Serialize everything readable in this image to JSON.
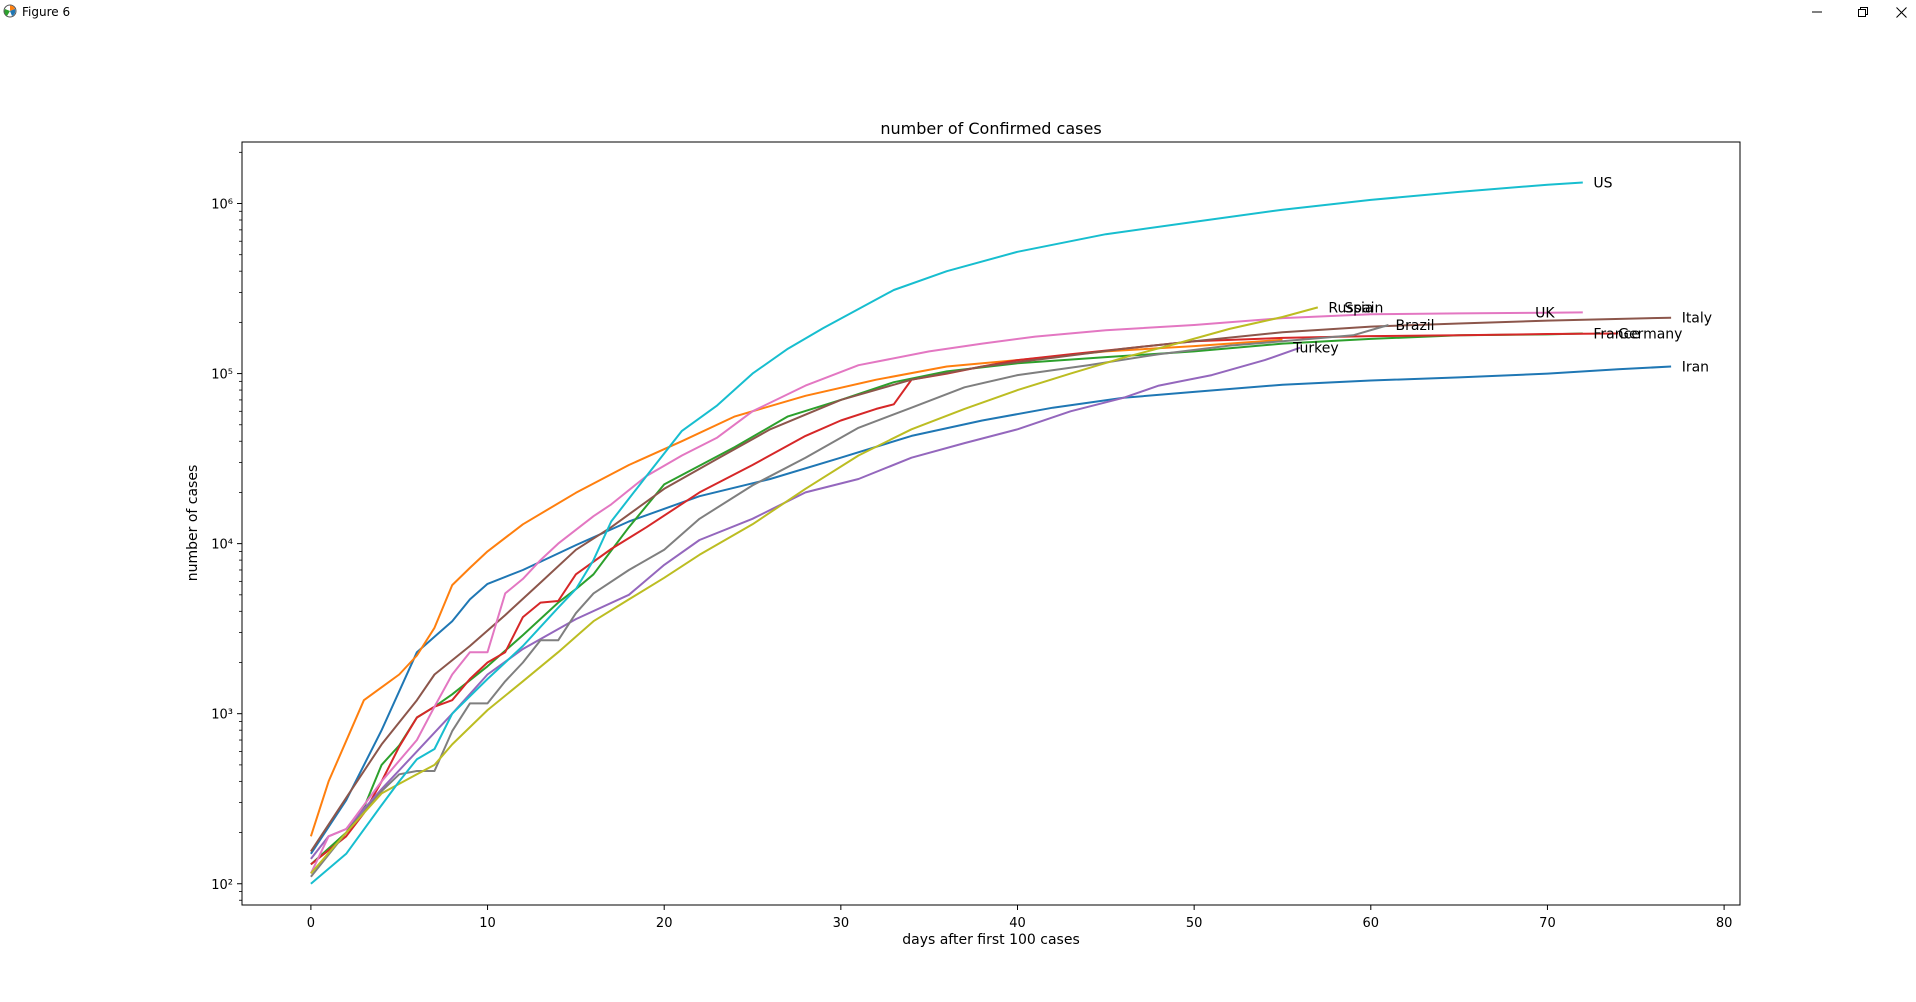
{
  "window": {
    "title": "Figure 6"
  },
  "chart_data": {
    "type": "line",
    "title": "number of Confirmed cases",
    "xlabel": "days after first 100 cases",
    "ylabel": "number of cases",
    "yscale": "log",
    "xlim": [
      -3.9,
      80.9
    ],
    "ylim": [
      75,
      2300000
    ],
    "xticks": [
      0,
      10,
      20,
      30,
      40,
      50,
      60,
      70,
      80
    ],
    "yticks": [
      {
        "value": 100,
        "label": "10²"
      },
      {
        "value": 1000,
        "label": "10³"
      },
      {
        "value": 10000,
        "label": "10⁴"
      },
      {
        "value": 100000,
        "label": "10⁵"
      },
      {
        "value": 1000000,
        "label": "10⁶"
      }
    ],
    "grid": false,
    "legend": "none",
    "series": [
      {
        "name": "Iran",
        "color": "#1f77b4",
        "points": [
          [
            0,
            150
          ],
          [
            2,
            310
          ],
          [
            4,
            800
          ],
          [
            6,
            2300
          ],
          [
            8,
            3500
          ],
          [
            9,
            4700
          ],
          [
            10,
            5800
          ],
          [
            12,
            7000
          ],
          [
            15,
            9800
          ],
          [
            18,
            13500
          ],
          [
            22,
            19000
          ],
          [
            26,
            24000
          ],
          [
            30,
            32000
          ],
          [
            34,
            43000
          ],
          [
            38,
            53000
          ],
          [
            42,
            63000
          ],
          [
            46,
            72000
          ],
          [
            50,
            78000
          ],
          [
            55,
            86000
          ],
          [
            60,
            91000
          ],
          [
            65,
            95000
          ],
          [
            70,
            100000
          ],
          [
            74,
            106000
          ],
          [
            77,
            110000
          ]
        ]
      },
      {
        "name": "Spain",
        "color": "#ff7f0e",
        "points": [
          [
            0,
            190
          ],
          [
            1,
            400
          ],
          [
            3,
            1200
          ],
          [
            5,
            1700
          ],
          [
            6,
            2200
          ],
          [
            7,
            3200
          ],
          [
            8,
            5700
          ],
          [
            9,
            7200
          ],
          [
            10,
            9000
          ],
          [
            12,
            13000
          ],
          [
            15,
            19900
          ],
          [
            18,
            29000
          ],
          [
            21,
            40000
          ],
          [
            24,
            56000
          ],
          [
            28,
            74000
          ],
          [
            32,
            92000
          ],
          [
            36,
            110000
          ],
          [
            40,
            120000
          ],
          [
            45,
            135000
          ],
          [
            50,
            145000
          ],
          [
            55,
            158000
          ]
        ]
      },
      {
        "name": "France",
        "color": "#2ca02c",
        "points": [
          [
            0,
            130
          ],
          [
            2,
            200
          ],
          [
            3,
            280
          ],
          [
            4,
            500
          ],
          [
            5,
            650
          ],
          [
            6,
            950
          ],
          [
            7,
            1100
          ],
          [
            8,
            1300
          ],
          [
            10,
            1900
          ],
          [
            12,
            2900
          ],
          [
            14,
            4500
          ],
          [
            15,
            5400
          ],
          [
            16,
            6600
          ],
          [
            17,
            9100
          ],
          [
            18,
            12500
          ],
          [
            20,
            22300
          ],
          [
            24,
            37000
          ],
          [
            27,
            56000
          ],
          [
            30,
            70000
          ],
          [
            33,
            89000
          ],
          [
            36,
            103000
          ],
          [
            40,
            115000
          ],
          [
            45,
            125000
          ],
          [
            50,
            135000
          ],
          [
            55,
            150000
          ],
          [
            60,
            160000
          ],
          [
            65,
            168000
          ],
          [
            70,
            170000
          ],
          [
            72,
            172000
          ]
        ]
      },
      {
        "name": "Germany",
        "color": "#d62728",
        "points": [
          [
            0,
            130
          ],
          [
            2,
            190
          ],
          [
            3,
            260
          ],
          [
            4,
            400
          ],
          [
            5,
            640
          ],
          [
            6,
            950
          ],
          [
            7,
            1100
          ],
          [
            8,
            1200
          ],
          [
            9,
            1600
          ],
          [
            10,
            2000
          ],
          [
            11,
            2300
          ],
          [
            12,
            3700
          ],
          [
            13,
            4500
          ],
          [
            14,
            4600
          ],
          [
            15,
            6600
          ],
          [
            17,
            9300
          ],
          [
            19,
            12500
          ],
          [
            22,
            20000
          ],
          [
            25,
            29000
          ],
          [
            28,
            43000
          ],
          [
            30,
            53000
          ],
          [
            32,
            62000
          ],
          [
            33,
            66000
          ],
          [
            34,
            92000
          ],
          [
            36,
            100000
          ],
          [
            38,
            110000
          ],
          [
            40,
            120000
          ],
          [
            43,
            130000
          ],
          [
            46,
            140000
          ],
          [
            50,
            155000
          ],
          [
            55,
            162000
          ],
          [
            60,
            166000
          ],
          [
            65,
            168000
          ],
          [
            70,
            171000
          ],
          [
            74,
            172000
          ]
        ]
      },
      {
        "name": "Turkey",
        "color": "#9467bd",
        "points": [
          [
            0,
            140
          ],
          [
            1,
            190
          ],
          [
            2,
            210
          ],
          [
            4,
            360
          ],
          [
            6,
            600
          ],
          [
            8,
            1000
          ],
          [
            10,
            1700
          ],
          [
            12,
            2400
          ],
          [
            15,
            3600
          ],
          [
            18,
            5000
          ],
          [
            20,
            7500
          ],
          [
            22,
            10500
          ],
          [
            25,
            14000
          ],
          [
            28,
            20000
          ],
          [
            31,
            24000
          ],
          [
            34,
            32000
          ],
          [
            37,
            39000
          ],
          [
            40,
            47000
          ],
          [
            43,
            60000
          ],
          [
            46,
            72000
          ],
          [
            48,
            85000
          ],
          [
            51,
            98000
          ],
          [
            54,
            120000
          ],
          [
            56,
            142000
          ]
        ]
      },
      {
        "name": "Italy",
        "color": "#8c564b",
        "points": [
          [
            0,
            155
          ],
          [
            2,
            320
          ],
          [
            4,
            660
          ],
          [
            6,
            1200
          ],
          [
            7,
            1700
          ],
          [
            9,
            2500
          ],
          [
            11,
            3800
          ],
          [
            13,
            5900
          ],
          [
            15,
            9200
          ],
          [
            17,
            12500
          ],
          [
            20,
            21000
          ],
          [
            23,
            31500
          ],
          [
            26,
            47000
          ],
          [
            30,
            70000
          ],
          [
            34,
            92000
          ],
          [
            38,
            110000
          ],
          [
            42,
            124000
          ],
          [
            46,
            140000
          ],
          [
            50,
            155000
          ],
          [
            55,
            175000
          ],
          [
            60,
            189000
          ],
          [
            65,
            197000
          ],
          [
            70,
            205000
          ],
          [
            77,
            213000
          ]
        ]
      },
      {
        "name": "UK",
        "color": "#e377c2",
        "points": [
          [
            0,
            115
          ],
          [
            1,
            190
          ],
          [
            2,
            210
          ],
          [
            4,
            400
          ],
          [
            6,
            700
          ],
          [
            7,
            1100
          ],
          [
            8,
            1700
          ],
          [
            9,
            2300
          ],
          [
            10,
            2300
          ],
          [
            11,
            5100
          ],
          [
            12,
            6200
          ],
          [
            13,
            8000
          ],
          [
            14,
            10000
          ],
          [
            16,
            14500
          ],
          [
            17,
            17000
          ],
          [
            19,
            25000
          ],
          [
            21,
            33000
          ],
          [
            23,
            42000
          ],
          [
            25,
            60000
          ],
          [
            28,
            85000
          ],
          [
            31,
            112000
          ],
          [
            35,
            135000
          ],
          [
            38,
            150000
          ],
          [
            41,
            165000
          ],
          [
            45,
            180000
          ],
          [
            50,
            193000
          ],
          [
            55,
            212000
          ],
          [
            60,
            223000
          ],
          [
            65,
            226000
          ],
          [
            70,
            228000
          ],
          [
            72,
            229000
          ]
        ]
      },
      {
        "name": "Brazil",
        "color": "#7f7f7f",
        "points": [
          [
            0,
            110
          ],
          [
            2,
            200
          ],
          [
            4,
            350
          ],
          [
            5,
            440
          ],
          [
            6,
            460
          ],
          [
            7,
            460
          ],
          [
            8,
            790
          ],
          [
            9,
            1150
          ],
          [
            10,
            1150
          ],
          [
            11,
            1550
          ],
          [
            12,
            2000
          ],
          [
            13,
            2700
          ],
          [
            14,
            2700
          ],
          [
            15,
            3900
          ],
          [
            16,
            5100
          ],
          [
            18,
            7000
          ],
          [
            20,
            9200
          ],
          [
            22,
            14000
          ],
          [
            25,
            22000
          ],
          [
            28,
            32000
          ],
          [
            31,
            48000
          ],
          [
            34,
            63000
          ],
          [
            37,
            83000
          ],
          [
            40,
            98000
          ],
          [
            44,
            112000
          ],
          [
            48,
            130000
          ],
          [
            52,
            146000
          ],
          [
            56,
            158000
          ],
          [
            59,
            168000
          ],
          [
            61,
            193000
          ]
        ]
      },
      {
        "name": "Russia",
        "color": "#bcbd22",
        "points": [
          [
            0,
            115
          ],
          [
            2,
            200
          ],
          [
            4,
            340
          ],
          [
            6,
            440
          ],
          [
            7,
            500
          ],
          [
            8,
            660
          ],
          [
            10,
            1050
          ],
          [
            12,
            1550
          ],
          [
            14,
            2300
          ],
          [
            16,
            3500
          ],
          [
            18,
            4700
          ],
          [
            20,
            6300
          ],
          [
            22,
            8600
          ],
          [
            25,
            13000
          ],
          [
            28,
            21000
          ],
          [
            31,
            33000
          ],
          [
            34,
            47000
          ],
          [
            37,
            62000
          ],
          [
            40,
            80000
          ],
          [
            43,
            100000
          ],
          [
            46,
            124000
          ],
          [
            49,
            150000
          ],
          [
            52,
            183000
          ],
          [
            55,
            215000
          ],
          [
            57,
            245000
          ]
        ]
      },
      {
        "name": "US",
        "color": "#17becf",
        "points": [
          [
            0,
            100
          ],
          [
            2,
            150
          ],
          [
            4,
            290
          ],
          [
            5,
            400
          ],
          [
            6,
            540
          ],
          [
            7,
            620
          ],
          [
            8,
            1000
          ],
          [
            10,
            1600
          ],
          [
            12,
            2500
          ],
          [
            14,
            4200
          ],
          [
            15,
            5400
          ],
          [
            16,
            8000
          ],
          [
            17,
            13500
          ],
          [
            19,
            25000
          ],
          [
            21,
            46000
          ],
          [
            23,
            65000
          ],
          [
            25,
            100000
          ],
          [
            27,
            140000
          ],
          [
            29,
            185000
          ],
          [
            33,
            310000
          ],
          [
            36,
            400000
          ],
          [
            40,
            520000
          ],
          [
            45,
            660000
          ],
          [
            50,
            780000
          ],
          [
            55,
            920000
          ],
          [
            60,
            1050000
          ],
          [
            65,
            1170000
          ],
          [
            70,
            1290000
          ],
          [
            72,
            1330000
          ]
        ]
      }
    ],
    "annotations": [
      {
        "text": "Iran",
        "x": 77.6,
        "y": 110000
      },
      {
        "text": "Spain",
        "x": 58.5,
        "y": 245000
      },
      {
        "text": "France",
        "x": 72.6,
        "y": 172000
      },
      {
        "text": "Germany",
        "x": 74.0,
        "y": 172000
      },
      {
        "text": "Turkey",
        "x": 55.6,
        "y": 142000
      },
      {
        "text": "Italy",
        "x": 77.6,
        "y": 213000
      },
      {
        "text": "UK",
        "x": 69.3,
        "y": 229000
      },
      {
        "text": "Brazil",
        "x": 61.4,
        "y": 193000
      },
      {
        "text": "Russia",
        "x": 57.6,
        "y": 245000
      },
      {
        "text": "US",
        "x": 72.6,
        "y": 1330000
      }
    ]
  }
}
